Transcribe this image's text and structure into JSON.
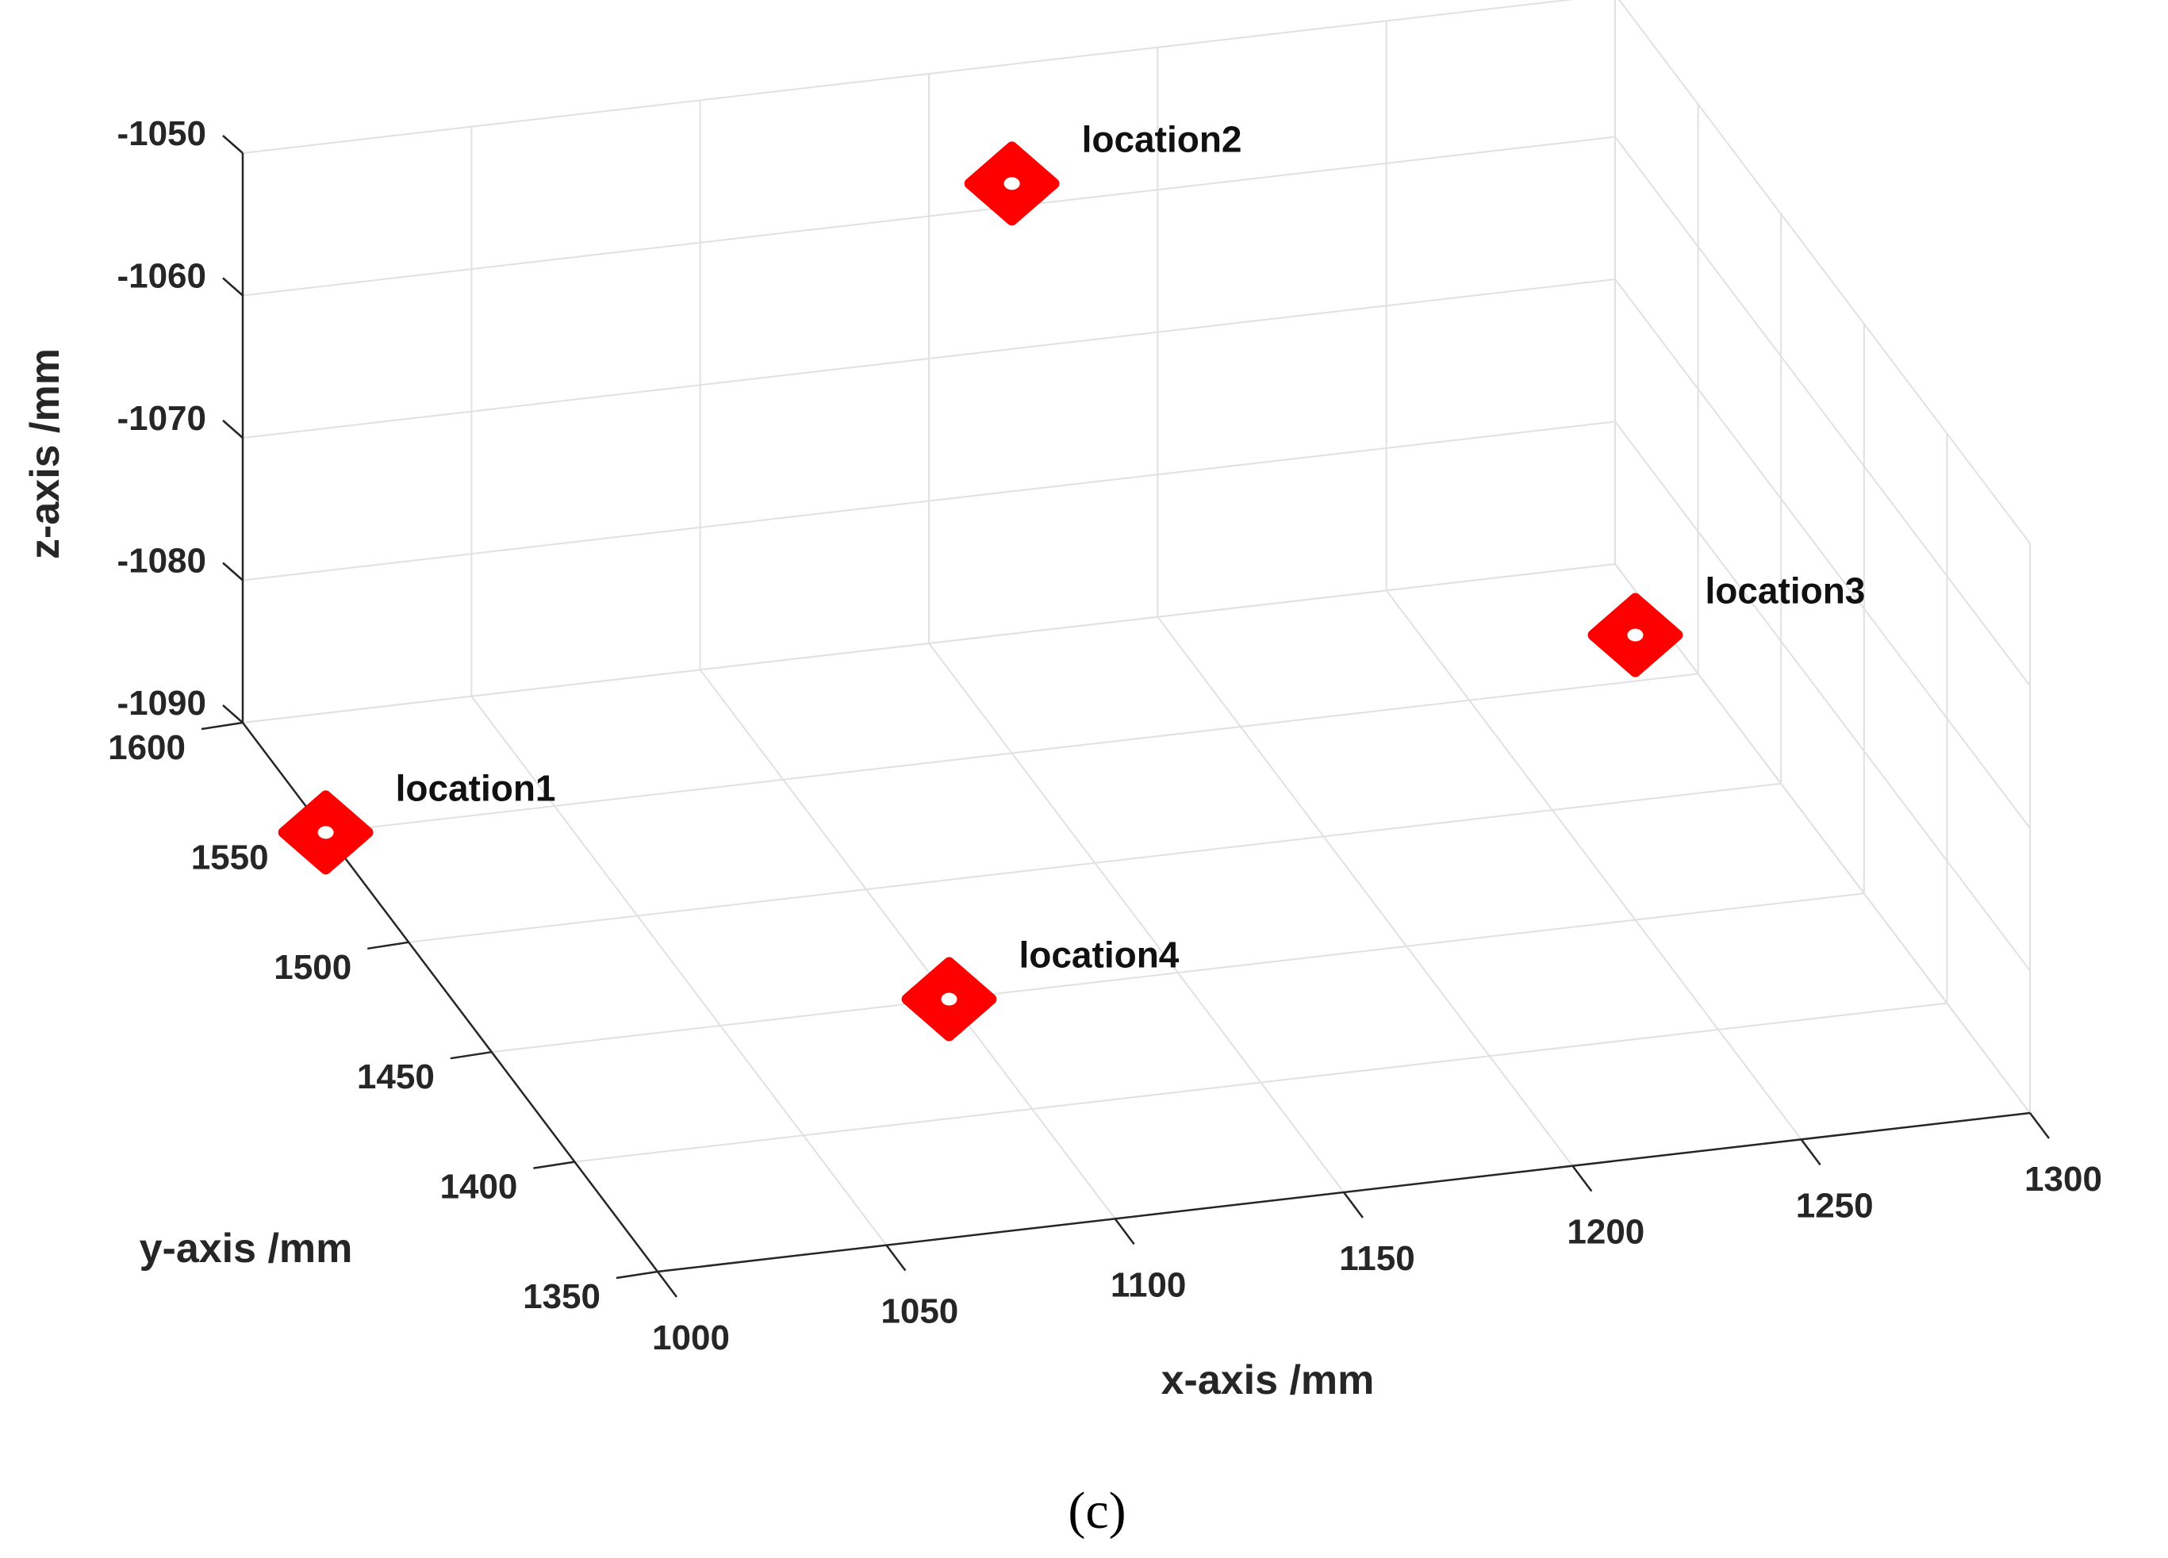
{
  "chart_data": {
    "type": "scatter",
    "view": "3d",
    "xlabel": "x-axis /mm",
    "ylabel": "y-axis /mm",
    "zlabel": "z-axis /mm",
    "xlim": [
      1000,
      1300
    ],
    "ylim": [
      1350,
      1600
    ],
    "zlim": [
      -1090,
      -1050
    ],
    "xticks": [
      1000,
      1050,
      1100,
      1150,
      1200,
      1250,
      1300
    ],
    "yticks": [
      1350,
      1400,
      1450,
      1500,
      1550,
      1600
    ],
    "zticks": [
      -1090,
      -1080,
      -1070,
      -1060,
      -1050
    ],
    "grid": true,
    "marker_color": "#ff0000",
    "points": [
      {
        "label": "location1",
        "x": 1000,
        "y": 1550,
        "z": -1090
      },
      {
        "label": "location2",
        "x": 1150,
        "y": 1550,
        "z": -1050
      },
      {
        "label": "location3",
        "x": 1250,
        "y": 1450,
        "z": -1070
      },
      {
        "label": "location4",
        "x": 1100,
        "y": 1450,
        "z": -1090
      }
    ]
  },
  "caption": "(c)"
}
